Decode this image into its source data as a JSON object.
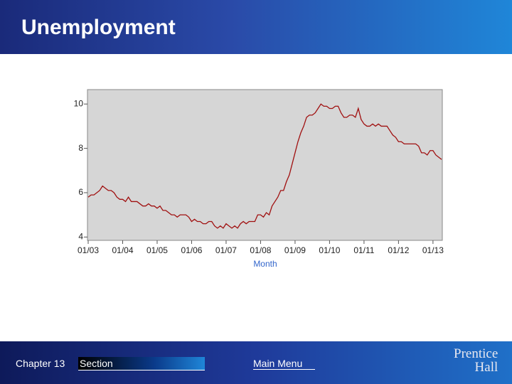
{
  "header": {
    "title": "Unemployment"
  },
  "footer": {
    "chapter": "Chapter 13",
    "section": "Section",
    "main_menu": "Main Menu",
    "logo": [
      "Prentice",
      "Hall"
    ]
  },
  "chart_data": {
    "type": "line",
    "x_label": "Month",
    "color": "#a01010",
    "grid": false,
    "x": [
      "2003-01",
      "2003-02",
      "2003-03",
      "2003-04",
      "2003-05",
      "2003-06",
      "2003-07",
      "2003-08",
      "2003-09",
      "2003-10",
      "2003-11",
      "2003-12",
      "2004-01",
      "2004-02",
      "2004-03",
      "2004-04",
      "2004-05",
      "2004-06",
      "2004-07",
      "2004-08",
      "2004-09",
      "2004-10",
      "2004-11",
      "2004-12",
      "2005-01",
      "2005-02",
      "2005-03",
      "2005-04",
      "2005-05",
      "2005-06",
      "2005-07",
      "2005-08",
      "2005-09",
      "2005-10",
      "2005-11",
      "2005-12",
      "2006-01",
      "2006-02",
      "2006-03",
      "2006-04",
      "2006-05",
      "2006-06",
      "2006-07",
      "2006-08",
      "2006-09",
      "2006-10",
      "2006-11",
      "2006-12",
      "2007-01",
      "2007-02",
      "2007-03",
      "2007-04",
      "2007-05",
      "2007-06",
      "2007-07",
      "2007-08",
      "2007-09",
      "2007-10",
      "2007-11",
      "2007-12",
      "2008-01",
      "2008-02",
      "2008-03",
      "2008-04",
      "2008-05",
      "2008-06",
      "2008-07",
      "2008-08",
      "2008-09",
      "2008-10",
      "2008-11",
      "2008-12",
      "2009-01",
      "2009-02",
      "2009-03",
      "2009-04",
      "2009-05",
      "2009-06",
      "2009-07",
      "2009-08",
      "2009-09",
      "2009-10",
      "2009-11",
      "2009-12",
      "2010-01",
      "2010-02",
      "2010-03",
      "2010-04",
      "2010-05",
      "2010-06",
      "2010-07",
      "2010-08",
      "2010-09",
      "2010-10",
      "2010-11",
      "2010-12",
      "2011-01",
      "2011-02",
      "2011-03",
      "2011-04",
      "2011-05",
      "2011-06",
      "2011-07",
      "2011-08",
      "2011-09",
      "2011-10",
      "2011-11",
      "2011-12",
      "2012-01",
      "2012-02",
      "2012-03",
      "2012-04",
      "2012-05",
      "2012-06",
      "2012-07",
      "2012-08",
      "2012-09",
      "2012-10",
      "2012-11",
      "2012-12",
      "2013-01",
      "2013-02",
      "2013-03",
      "2013-04"
    ],
    "values": [
      5.8,
      5.9,
      5.9,
      6.0,
      6.1,
      6.3,
      6.2,
      6.1,
      6.1,
      6.0,
      5.8,
      5.7,
      5.7,
      5.6,
      5.8,
      5.6,
      5.6,
      5.6,
      5.5,
      5.4,
      5.4,
      5.5,
      5.4,
      5.4,
      5.3,
      5.4,
      5.2,
      5.2,
      5.1,
      5.0,
      5.0,
      4.9,
      5.0,
      5.0,
      5.0,
      4.9,
      4.7,
      4.8,
      4.7,
      4.7,
      4.6,
      4.6,
      4.7,
      4.7,
      4.5,
      4.4,
      4.5,
      4.4,
      4.6,
      4.5,
      4.4,
      4.5,
      4.4,
      4.6,
      4.7,
      4.6,
      4.7,
      4.7,
      4.7,
      5.0,
      5.0,
      4.9,
      5.1,
      5.0,
      5.4,
      5.6,
      5.8,
      6.1,
      6.1,
      6.5,
      6.8,
      7.3,
      7.8,
      8.3,
      8.7,
      9.0,
      9.4,
      9.5,
      9.5,
      9.6,
      9.8,
      10.0,
      9.9,
      9.9,
      9.8,
      9.8,
      9.9,
      9.9,
      9.6,
      9.4,
      9.4,
      9.5,
      9.5,
      9.4,
      9.8,
      9.3,
      9.1,
      9.0,
      9.0,
      9.1,
      9.0,
      9.1,
      9.0,
      9.0,
      9.0,
      8.8,
      8.6,
      8.5,
      8.3,
      8.3,
      8.2,
      8.2,
      8.2,
      8.2,
      8.2,
      8.1,
      7.8,
      7.8,
      7.7,
      7.9,
      7.9,
      7.7,
      7.6,
      7.5
    ],
    "xlim": [
      "2003-01",
      "2013-04"
    ],
    "xticks": [
      {
        "value": "2003-01",
        "label": "01/03"
      },
      {
        "value": "2004-01",
        "label": "01/04"
      },
      {
        "value": "2005-01",
        "label": "01/05"
      },
      {
        "value": "2006-01",
        "label": "01/06"
      },
      {
        "value": "2007-01",
        "label": "01/07"
      },
      {
        "value": "2008-01",
        "label": "01/08"
      },
      {
        "value": "2009-01",
        "label": "01/09"
      },
      {
        "value": "2010-01",
        "label": "01/10"
      },
      {
        "value": "2011-01",
        "label": "01/11"
      },
      {
        "value": "2012-01",
        "label": "01/12"
      },
      {
        "value": "2013-01",
        "label": "01/13"
      }
    ],
    "ylim": [
      3.85,
      10.65
    ],
    "yticks": [
      4,
      6,
      8,
      10
    ]
  }
}
